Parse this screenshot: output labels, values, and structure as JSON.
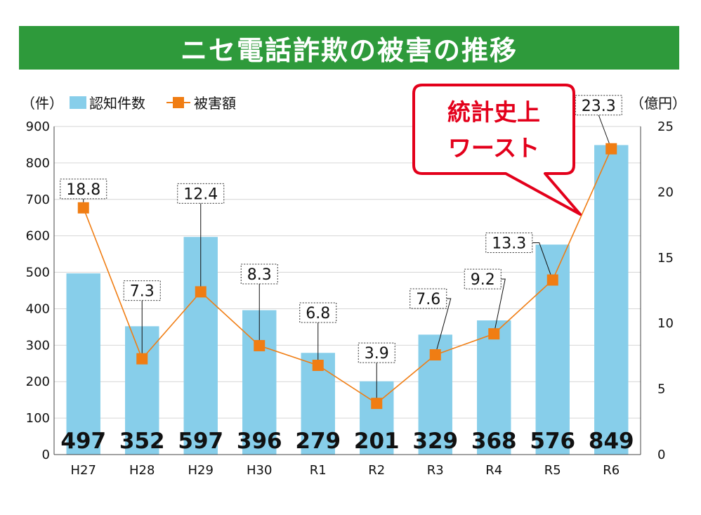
{
  "title": "ニセ電話詐欺の被害の推移",
  "colors": {
    "title_bg": "#2e9a3b",
    "bar": "#87ceea",
    "line": "#f07d13",
    "callout": "#e3001b"
  },
  "callout": {
    "line1": "統計史上",
    "line2": "ワースト"
  },
  "chart_data": {
    "type": "bar",
    "categories": [
      "H27",
      "H28",
      "H29",
      "H30",
      "R1",
      "R2",
      "R3",
      "R4",
      "R5",
      "R6"
    ],
    "left_axis": {
      "label": "（件）",
      "ylim": [
        0,
        900
      ],
      "ticks": [
        "0",
        "100",
        "200",
        "300",
        "400",
        "500",
        "600",
        "700",
        "800",
        "900"
      ]
    },
    "right_axis": {
      "label": "（億円）",
      "ylim": [
        0,
        25
      ],
      "ticks": [
        "0",
        "5",
        "10",
        "15",
        "20",
        "25"
      ]
    },
    "grid": true,
    "legend_position": "top-left",
    "series": [
      {
        "name": "認知件数",
        "type": "bar",
        "axis": "left",
        "values": [
          497,
          352,
          597,
          396,
          279,
          201,
          329,
          368,
          576,
          849
        ],
        "labels": [
          "497",
          "352",
          "597",
          "396",
          "279",
          "201",
          "329",
          "368",
          "576",
          "849"
        ]
      },
      {
        "name": "被害額",
        "type": "line",
        "axis": "right",
        "values": [
          18.8,
          7.3,
          12.4,
          8.3,
          6.8,
          3.9,
          7.6,
          9.2,
          13.3,
          23.3
        ],
        "labels": [
          "18.8",
          "7.3",
          "12.4",
          "8.3",
          "6.8",
          "3.9",
          "7.6",
          "9.2",
          "13.3",
          "23.3"
        ]
      }
    ]
  }
}
